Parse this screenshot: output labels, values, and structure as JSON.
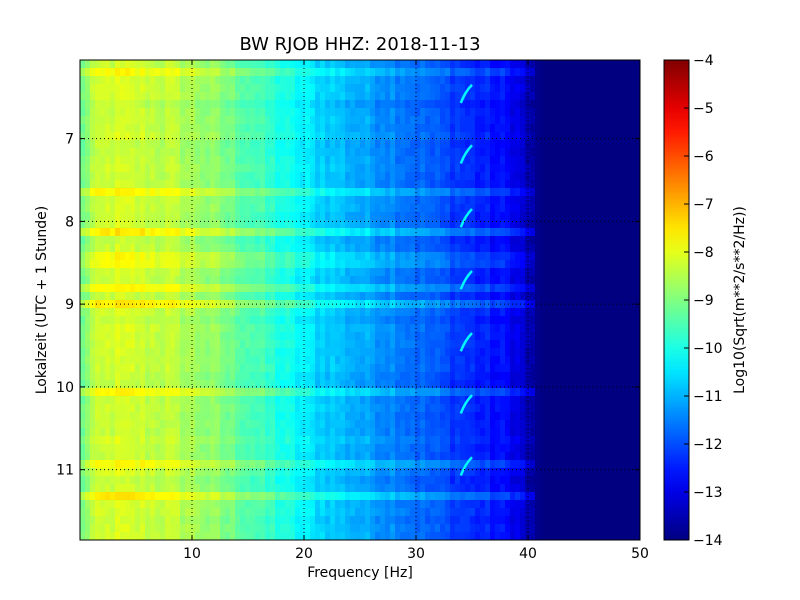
{
  "chart_data": {
    "type": "heatmap",
    "title": "BW RJOB HHZ: 2018-11-13",
    "xlabel": "Frequency [Hz]",
    "ylabel": "Lokalzeit (UTC + 1 Stunde)",
    "xlim": [
      0,
      50
    ],
    "ylim": [
      11.85,
      6.05
    ],
    "y_inverted": true,
    "x_ticks": [
      10,
      20,
      30,
      40,
      50
    ],
    "x_tick_labels": [
      "10",
      "20",
      "30",
      "40",
      "50"
    ],
    "y_ticks": [
      7,
      8,
      9,
      10,
      11
    ],
    "y_tick_labels": [
      "7",
      "8",
      "9",
      "10",
      "11"
    ],
    "grid": true,
    "grid_style": "dotted",
    "colormap": "jet",
    "colorbar": {
      "label": "Log10(Sqrt(m**2/s**2/Hz))",
      "range": [
        -14,
        -4
      ],
      "ticks": [
        -4,
        -5,
        -6,
        -7,
        -8,
        -9,
        -10,
        -11,
        -12,
        -13,
        -14
      ],
      "tick_labels": [
        "−4",
        "−5",
        "−6",
        "−7",
        "−8",
        "−9",
        "−10",
        "−11",
        "−12",
        "−13",
        "−14"
      ]
    },
    "spectral_profile": {
      "frequency_hz": [
        0,
        1,
        3,
        8,
        12,
        16,
        19,
        21,
        25,
        28,
        30,
        33,
        36,
        38.5,
        39.5,
        40.5,
        41.5,
        50
      ],
      "log10_amplitude": [
        -9.4,
        -8.5,
        -8.2,
        -8.4,
        -8.9,
        -9.6,
        -10.2,
        -10.6,
        -11.1,
        -11.4,
        -11.7,
        -12.1,
        -12.5,
        -12.8,
        -13.2,
        -13.8,
        -14,
        -14
      ]
    },
    "disturbance_hours": [
      6.45,
      7.18,
      7.95,
      8.7,
      9.45,
      10.2,
      10.95
    ],
    "disturbance_frequency_hz": [
      34,
      35
    ]
  }
}
